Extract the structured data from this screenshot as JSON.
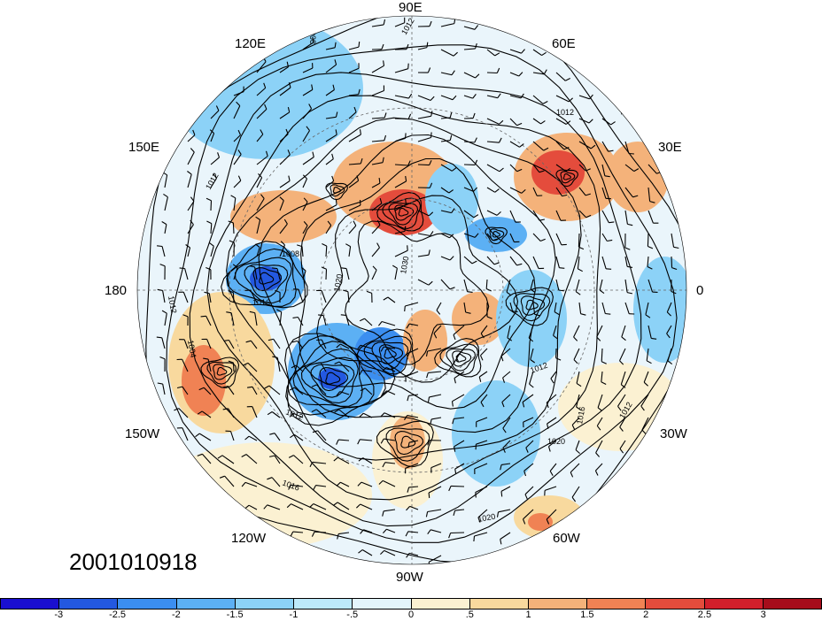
{
  "timestamp": "2001010918",
  "longitude_labels": {
    "lon_90e": "90E",
    "lon_120e": "120E",
    "lon_60e": "60E",
    "lon_150e": "150E",
    "lon_30e": "30E",
    "lon_180": "180",
    "lon_0": "0",
    "lon_150w": "150W",
    "lon_30w": "30W",
    "lon_120w": "120W",
    "lon_60w": "60W",
    "lon_90w": "90W"
  },
  "contour_labels": [
    "1008",
    "1012",
    "1012",
    "1016",
    "1012",
    "1012",
    "1004",
    "1008",
    "1016",
    "1020",
    "1030",
    "1012",
    "1016",
    "1012",
    "1016",
    "1012",
    "1020",
    "1020"
  ],
  "colorbar": {
    "colors": [
      "#1a0fd0",
      "#2358e0",
      "#3b8ef0",
      "#5cb0f4",
      "#8cd2f7",
      "#bde9fa",
      "#e4f5fb",
      "#fbf1d2",
      "#f8d99e",
      "#f4b27a",
      "#f08254",
      "#e44c3c",
      "#d21f2b",
      "#a60d1b"
    ],
    "ticks": [
      "-3",
      "-2.5",
      "-2",
      "-1.5",
      "-1",
      "-.5",
      "0",
      ".5",
      "1",
      "1.5",
      "2",
      "2.5",
      "3"
    ]
  }
}
